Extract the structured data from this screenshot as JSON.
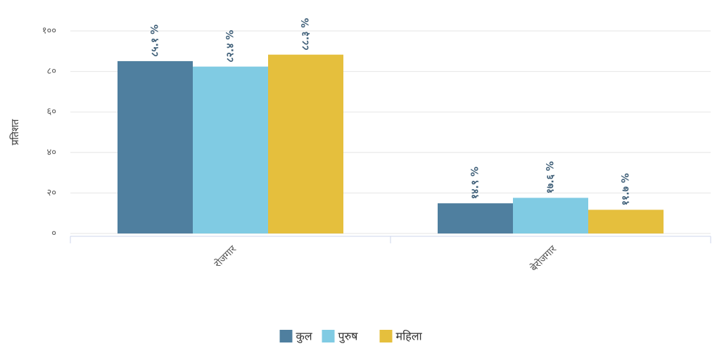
{
  "chart_data": {
    "type": "bar",
    "y_label": "प्रतिशत",
    "categories": [
      "रोजगार",
      "बेरोजगार"
    ],
    "series": [
      {
        "name": "कुल",
        "color": "#4f7f9f",
        "values": [
          85.1,
          14.9
        ],
        "value_labels": [
          "८५.१ %",
          "१४.९ %"
        ]
      },
      {
        "name": "पुरुष",
        "color": "#80cbe3",
        "values": [
          82.4,
          17.6
        ],
        "value_labels": [
          "८२.४ %",
          "१७.६ %"
        ]
      },
      {
        "name": "महिला",
        "color": "#e5bf3d",
        "values": [
          88.3,
          11.7
        ],
        "value_labels": [
          "८८.३ %",
          "११.७ %"
        ]
      }
    ],
    "ylim": [
      0,
      100
    ],
    "yticks": [
      {
        "value": 0,
        "label": "०"
      },
      {
        "value": 20,
        "label": "२०"
      },
      {
        "value": 40,
        "label": "४०"
      },
      {
        "value": 60,
        "label": "६०"
      },
      {
        "value": 80,
        "label": "८०"
      },
      {
        "value": 100,
        "label": "१००"
      }
    ],
    "grid": true,
    "legend": "bottom"
  }
}
